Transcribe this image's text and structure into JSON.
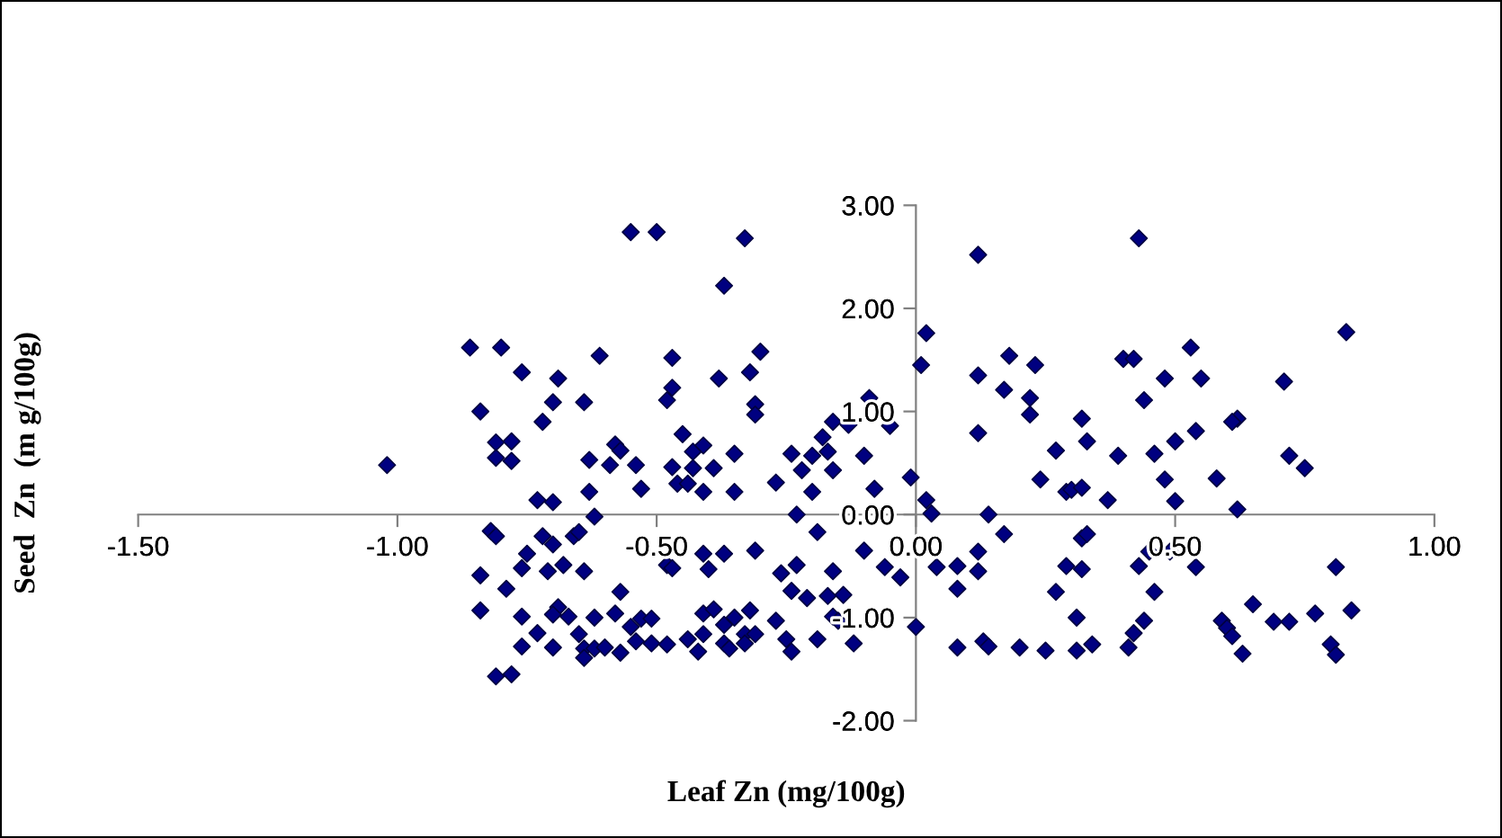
{
  "chart_data": {
    "type": "scatter",
    "xlabel": "Leaf Zn (mg/100g)",
    "ylabel": "Seed  Zn  (m g/100g)",
    "marker": "diamond",
    "xlim": [
      -1.5,
      1.0
    ],
    "ylim": [
      -2,
      3
    ],
    "xticks": [
      {
        "value": -1.5,
        "label": "-1.50"
      },
      {
        "value": -1.0,
        "label": "-1.00"
      },
      {
        "value": -0.5,
        "label": "-0.50"
      },
      {
        "value": 0,
        "label": "0.00"
      },
      {
        "value": 0.5,
        "label": "0.50"
      },
      {
        "value": 1.0,
        "label": "1.00"
      }
    ],
    "yticks": [
      {
        "value": -2,
        "label": "-2.00"
      },
      {
        "value": -1,
        "label": "-1.00"
      },
      {
        "value": 0,
        "label": "0.00"
      },
      {
        "value": 1,
        "label": "1.00"
      },
      {
        "value": 2,
        "label": "2.00"
      },
      {
        "value": 3,
        "label": "3.00"
      }
    ],
    "series": [
      {
        "color": "#000080",
        "x": [
          -1.02,
          -0.86,
          -0.8,
          -0.76,
          -0.84,
          -0.72,
          -0.7,
          -0.64,
          -0.81,
          -0.78,
          -0.81,
          -0.78,
          -0.73,
          -0.7,
          -0.63,
          -0.63,
          -0.62,
          -0.59,
          -0.58,
          -0.57,
          -0.54,
          -0.53,
          -0.47,
          -0.48,
          -0.47,
          -0.46,
          -0.45,
          -0.44,
          -0.43,
          -0.43,
          -0.41,
          -0.41,
          -0.39,
          -0.35,
          -0.35,
          -0.31,
          -0.31,
          -0.27,
          -0.24,
          -0.22,
          -0.2,
          -0.23,
          -0.2,
          -0.18,
          -0.17,
          -0.16,
          -0.16,
          -0.13,
          -0.1,
          -0.08,
          -0.09,
          -0.05,
          -0.01,
          -0.55,
          -0.5,
          -0.33,
          -0.37,
          -0.61,
          -0.69,
          -0.47,
          -0.38,
          -0.32,
          -0.3,
          0.01,
          0.02,
          0.12,
          0.12,
          0.18,
          0.23,
          0.43,
          0.4,
          0.42,
          0.48,
          0.53,
          0.55,
          0.83,
          0.71,
          0.17,
          0.22,
          0.22,
          0.62,
          0.61,
          0.12,
          0.27,
          0.24,
          0.29,
          0.3,
          0.32,
          0.32,
          0.33,
          0.37,
          0.39,
          0.44,
          0.46,
          0.48,
          0.5,
          0.5,
          0.54,
          0.58,
          0.62,
          0.72,
          0.75,
          0.02,
          0.03,
          0.14,
          -0.82,
          -0.81,
          -0.84,
          -0.84,
          -0.79,
          -0.75,
          -0.76,
          -0.76,
          -0.76,
          -0.73,
          -0.81,
          -0.78,
          -0.72,
          -0.7,
          -0.71,
          -0.68,
          -0.69,
          -0.7,
          -0.67,
          -0.7,
          -0.66,
          -0.65,
          -0.64,
          -0.65,
          -0.64,
          -0.64,
          -0.62,
          -0.62,
          -0.6,
          -0.57,
          -0.58,
          -0.57,
          -0.55,
          -0.54,
          -0.53,
          -0.51,
          -0.51,
          -0.48,
          -0.48,
          -0.47,
          -0.44,
          -0.42,
          -0.41,
          -0.41,
          -0.4,
          -0.41,
          -0.37,
          -0.39,
          -0.37,
          -0.37,
          -0.36,
          -0.35,
          -0.33,
          -0.33,
          -0.32,
          -0.31,
          -0.31,
          -0.27,
          -0.26,
          -0.25,
          -0.24,
          -0.23,
          -0.24,
          -0.21,
          -0.19,
          -0.19,
          -0.16,
          -0.17,
          -0.16,
          -0.14,
          -0.15,
          -0.12,
          -0.1,
          -0.06,
          -0.03,
          0.0,
          0.17,
          0.12,
          0.12,
          0.08,
          0.04,
          0.08,
          0.08,
          0.13,
          0.14,
          0.2,
          0.25,
          0.31,
          0.34,
          0.27,
          0.29,
          0.32,
          0.32,
          0.33,
          0.31,
          0.42,
          0.41,
          0.44,
          0.46,
          0.45,
          0.43,
          0.49,
          0.54,
          0.59,
          0.6,
          0.61,
          0.63,
          0.65,
          0.69,
          0.72,
          0.77,
          0.8,
          0.81,
          0.81,
          0.84
        ],
        "values": [
          0.48,
          1.62,
          1.62,
          1.38,
          1.0,
          0.9,
          1.09,
          1.09,
          0.7,
          0.71,
          0.55,
          0.52,
          0.14,
          0.12,
          0.53,
          0.22,
          -0.02,
          0.48,
          0.68,
          0.62,
          0.48,
          0.25,
          1.23,
          1.11,
          0.46,
          0.3,
          0.78,
          0.3,
          0.61,
          0.45,
          0.22,
          0.67,
          0.45,
          0.59,
          0.22,
          1.07,
          0.97,
          0.31,
          0.59,
          0.43,
          0.22,
          0.0,
          0.57,
          0.75,
          0.61,
          0.43,
          0.9,
          0.87,
          0.57,
          0.25,
          1.13,
          0.86,
          0.36,
          2.74,
          2.74,
          2.68,
          2.22,
          1.54,
          1.32,
          1.52,
          1.32,
          1.38,
          1.58,
          1.45,
          1.76,
          2.52,
          1.35,
          1.54,
          1.45,
          2.68,
          1.51,
          1.51,
          1.32,
          1.62,
          1.32,
          1.77,
          1.29,
          1.21,
          1.13,
          0.97,
          0.93,
          0.9,
          0.79,
          0.62,
          0.34,
          0.22,
          0.24,
          0.26,
          0.93,
          0.71,
          0.14,
          0.57,
          1.11,
          0.59,
          0.34,
          0.71,
          0.13,
          0.81,
          0.35,
          0.05,
          0.57,
          0.45,
          0.14,
          0.01,
          0.0,
          -0.16,
          -0.21,
          -0.59,
          -0.93,
          -0.72,
          -0.38,
          -0.52,
          -0.99,
          -1.28,
          -1.15,
          -1.57,
          -1.55,
          -0.21,
          -0.29,
          -0.55,
          -0.49,
          -0.9,
          -0.97,
          -0.99,
          -1.29,
          -0.21,
          -0.17,
          -0.55,
          -1.16,
          -1.3,
          -1.39,
          -1.3,
          -1.0,
          -1.29,
          -0.75,
          -0.96,
          -1.34,
          -1.09,
          -1.23,
          -1.01,
          -1.01,
          -1.25,
          -1.26,
          -0.49,
          -0.52,
          -1.21,
          -1.33,
          -1.16,
          -0.38,
          -0.53,
          -0.96,
          -0.38,
          -0.92,
          -1.07,
          -1.25,
          -1.3,
          -1.0,
          -1.16,
          -1.25,
          -0.93,
          -1.16,
          -0.35,
          -1.03,
          -0.57,
          -1.21,
          -1.33,
          -0.49,
          -0.74,
          -0.81,
          -0.17,
          -1.21,
          -0.55,
          -0.79,
          -0.99,
          -0.78,
          -1.03,
          -1.25,
          -0.35,
          -0.51,
          -0.61,
          -1.09,
          -0.19,
          -0.36,
          -0.55,
          -0.5,
          -0.51,
          -0.72,
          -1.29,
          -1.23,
          -1.28,
          -1.29,
          -1.32,
          -1.32,
          -1.26,
          -0.75,
          -0.5,
          -0.53,
          -0.23,
          -0.19,
          -1.0,
          -1.15,
          -1.29,
          -1.03,
          -0.75,
          -0.36,
          -0.5,
          -0.36,
          -0.51,
          -1.03,
          -1.1,
          -1.18,
          -1.35,
          -0.87,
          -1.04,
          -1.04,
          -0.96,
          -1.26,
          -1.36,
          -0.51,
          -0.93
        ]
      }
    ]
  }
}
